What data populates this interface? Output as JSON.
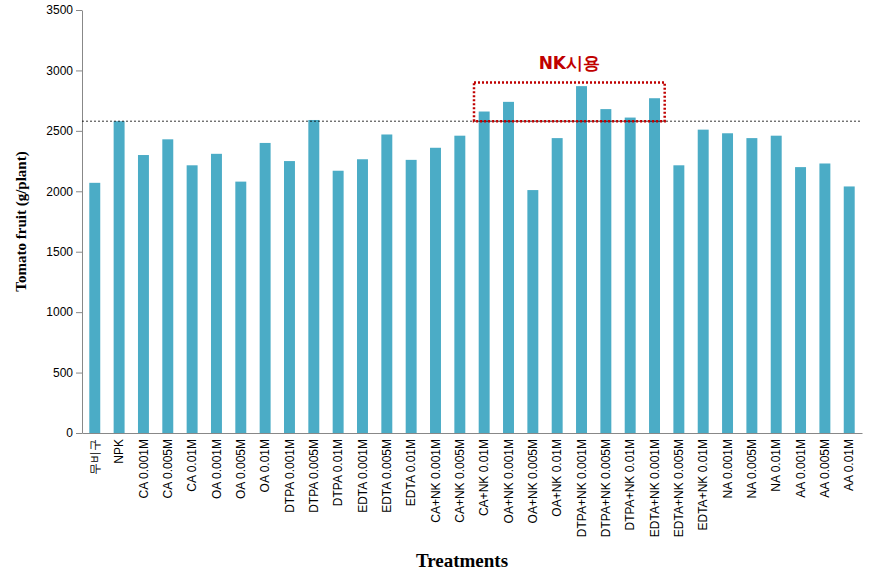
{
  "chart_data": {
    "type": "bar",
    "x_label": "Treatments",
    "y_label": "Tomato fruit (g/plant)",
    "categories": [
      "무비구",
      "NPK",
      "CA 0.001M",
      "CA 0.005M",
      "CA 0.01M",
      "OA 0.001M",
      "OA 0.005M",
      "OA 0.01M",
      "DTPA 0.001M",
      "DTPA 0.005M",
      "DTPA 0.01M",
      "EDTA 0.001M",
      "EDTA 0.005M",
      "EDTA 0.01M",
      "CA+NK 0.001M",
      "CA+NK 0.005M",
      "CA+NK 0.01M",
      "OA+NK 0.001M",
      "OA+NK 0.005M",
      "OA+NK 0.01M",
      "DTPA+NK 0.001M",
      "DTPA+NK 0.005M",
      "DTPA+NK 0.01M",
      "EDTA+NK 0.001M",
      "EDTA+NK 0.005M",
      "EDTA+NK 0.01M",
      "NA 0.001M",
      "NA 0.005M",
      "NA 0.01M",
      "AA 0.001M",
      "AA 0.005M",
      "AA 0.01M"
    ],
    "values": [
      2070,
      2580,
      2300,
      2430,
      2215,
      2310,
      2080,
      2400,
      2250,
      2590,
      2170,
      2265,
      2470,
      2260,
      2360,
      2460,
      2660,
      2740,
      2010,
      2440,
      2870,
      2680,
      2610,
      2770,
      2215,
      2510,
      2480,
      2440,
      2460,
      2200,
      2230,
      2040
    ],
    "color": "#4bacc6",
    "ylim": [
      0,
      3500
    ],
    "yticks": [
      0,
      500,
      1000,
      1500,
      2000,
      2500,
      3000,
      3500
    ],
    "grid": false,
    "reference_line": 2580,
    "annotations": [
      {
        "text": "NK시용",
        "categories": [
          "CA+NK 0.01M",
          "EDTA+NK 0.001M"
        ],
        "y": [
          2580,
          2900
        ],
        "color": "#c00000"
      }
    ]
  }
}
